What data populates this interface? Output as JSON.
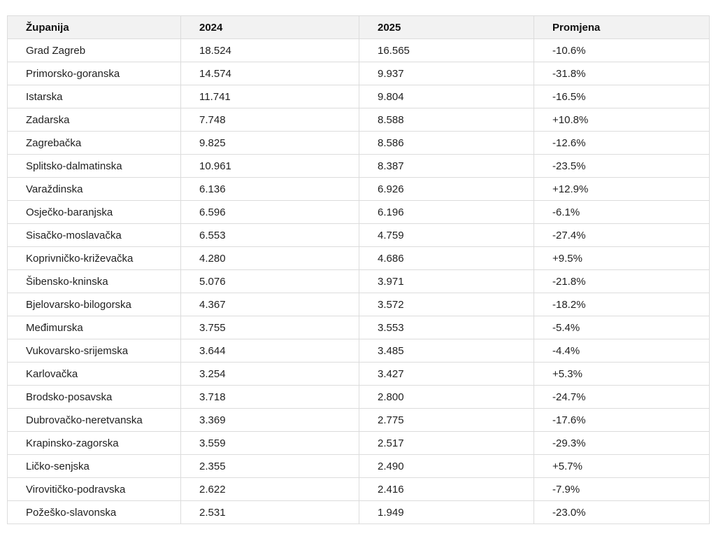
{
  "chart_data": {
    "type": "table",
    "columns": [
      "Županija",
      "2024",
      "2025",
      "Promjena"
    ],
    "rows": [
      [
        "Grad Zagreb",
        "18.524",
        "16.565",
        "-10.6%"
      ],
      [
        "Primorsko-goranska",
        "14.574",
        "9.937",
        "-31.8%"
      ],
      [
        "Istarska",
        "11.741",
        "9.804",
        "-16.5%"
      ],
      [
        "Zadarska",
        "7.748",
        "8.588",
        "+10.8%"
      ],
      [
        "Zagrebačka",
        "9.825",
        "8.586",
        "-12.6%"
      ],
      [
        "Splitsko-dalmatinska",
        "10.961",
        "8.387",
        "-23.5%"
      ],
      [
        "Varaždinska",
        "6.136",
        "6.926",
        "+12.9%"
      ],
      [
        "Osječko-baranjska",
        "6.596",
        "6.196",
        "-6.1%"
      ],
      [
        "Sisačko-moslavačka",
        "6.553",
        "4.759",
        "-27.4%"
      ],
      [
        "Koprivničko-križevačka",
        "4.280",
        "4.686",
        "+9.5%"
      ],
      [
        "Šibensko-kninska",
        "5.076",
        "3.971",
        "-21.8%"
      ],
      [
        "Bjelovarsko-bilogorska",
        "4.367",
        "3.572",
        "-18.2%"
      ],
      [
        "Međimurska",
        "3.755",
        "3.553",
        "-5.4%"
      ],
      [
        "Vukovarsko-srijemska",
        "3.644",
        "3.485",
        "-4.4%"
      ],
      [
        "Karlovačka",
        "3.254",
        "3.427",
        "+5.3%"
      ],
      [
        "Brodsko-posavska",
        "3.718",
        "2.800",
        "-24.7%"
      ],
      [
        "Dubrovačko-neretvanska",
        "3.369",
        "2.775",
        "-17.6%"
      ],
      [
        "Krapinsko-zagorska",
        "3.559",
        "2.517",
        "-29.3%"
      ],
      [
        "Ličko-senjska",
        "2.355",
        "2.490",
        "+5.7%"
      ],
      [
        "Virovitičko-podravska",
        "2.622",
        "2.416",
        "-7.9%"
      ],
      [
        "Požeško-slavonska",
        "2.531",
        "1.949",
        "-23.0%"
      ]
    ]
  },
  "colors": {
    "header_bg": "#f2f2f2",
    "border": "#dcdcdc",
    "text": "#1f1f1f",
    "background": "#ffffff"
  }
}
